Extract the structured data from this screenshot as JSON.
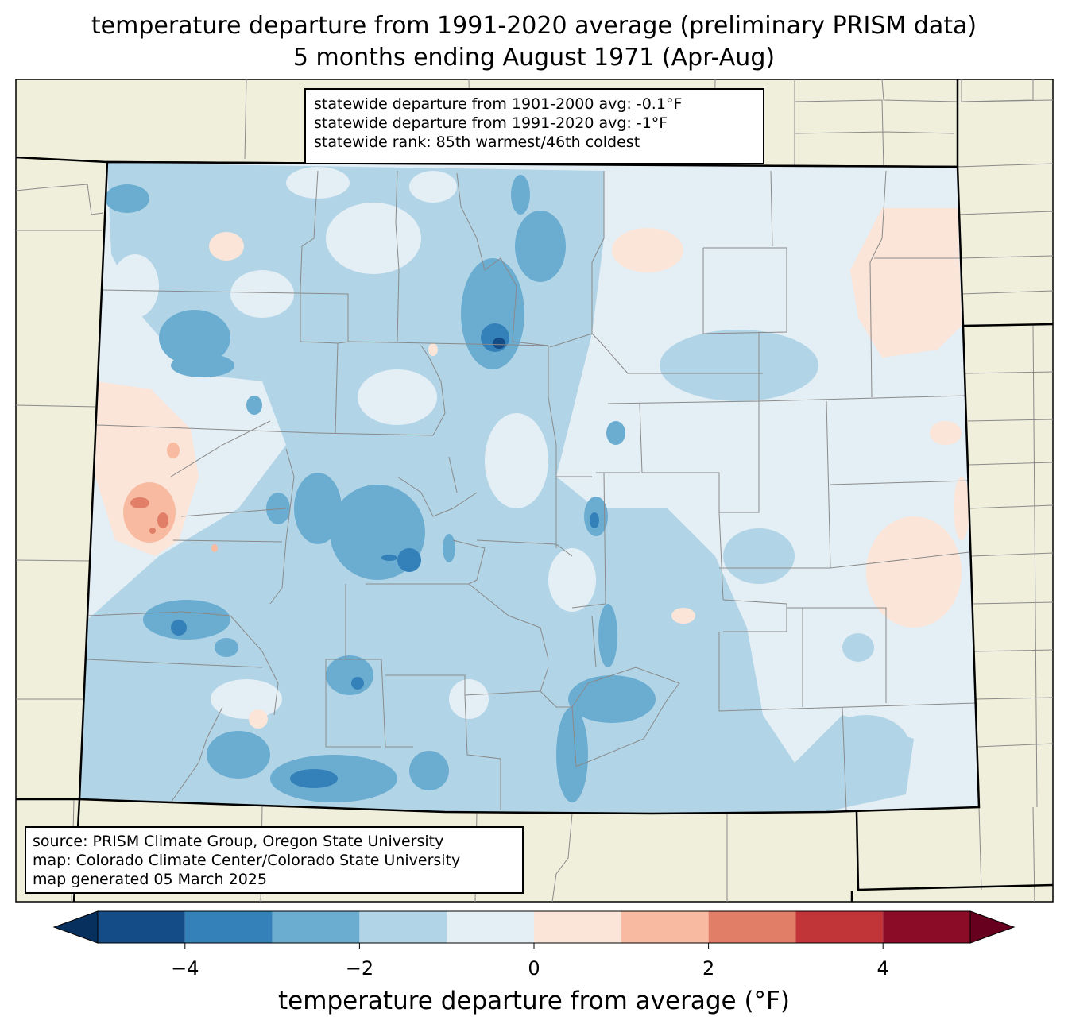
{
  "title": {
    "line1": "temperature departure from 1991-2020 average (preliminary PRISM data)",
    "line2": "5 months ending August 1971 (Apr-Aug)"
  },
  "stats": {
    "line1": "statewide departure from 1901-2000 avg: -0.1°F",
    "line2": "statewide departure from 1991-2020 avg: -1°F",
    "line3": "statewide rank: 85th warmest/46th coldest"
  },
  "credits": {
    "line1": "source: PRISM Climate Group, Oregon State University",
    "line2": "map: Colorado Climate Center/Colorado State University",
    "line3": "map generated 05 March 2025"
  },
  "colorbar": {
    "label": "temperature departure from average (°F)",
    "ticks": [
      "−4",
      "−2",
      "0",
      "2",
      "4"
    ],
    "tick_values": [
      -4,
      -2,
      0,
      2,
      4
    ],
    "range": [
      -5,
      5
    ],
    "bins": [
      {
        "from": -5,
        "to": -4,
        "color": "#144c87"
      },
      {
        "from": -4,
        "to": -3,
        "color": "#3480b9"
      },
      {
        "from": -3,
        "to": -2,
        "color": "#6bacd1"
      },
      {
        "from": -2,
        "to": -1,
        "color": "#b1d5e7"
      },
      {
        "from": -1,
        "to": 0,
        "color": "#e4eef5"
      },
      {
        "from": 0,
        "to": 1,
        "color": "#fbe5d8"
      },
      {
        "from": 1,
        "to": 2,
        "color": "#f8bba1"
      },
      {
        "from": 2,
        "to": 3,
        "color": "#e17e68"
      },
      {
        "from": 3,
        "to": 4,
        "color": "#c13539"
      },
      {
        "from": 4,
        "to": 5,
        "color": "#8a0c26"
      }
    ],
    "under_color": "#08305e",
    "over_color": "#67001f"
  },
  "colors": {
    "background_land": "#efefdc",
    "county_lines": "#8a8a8a",
    "state_lines": "#000000"
  }
}
